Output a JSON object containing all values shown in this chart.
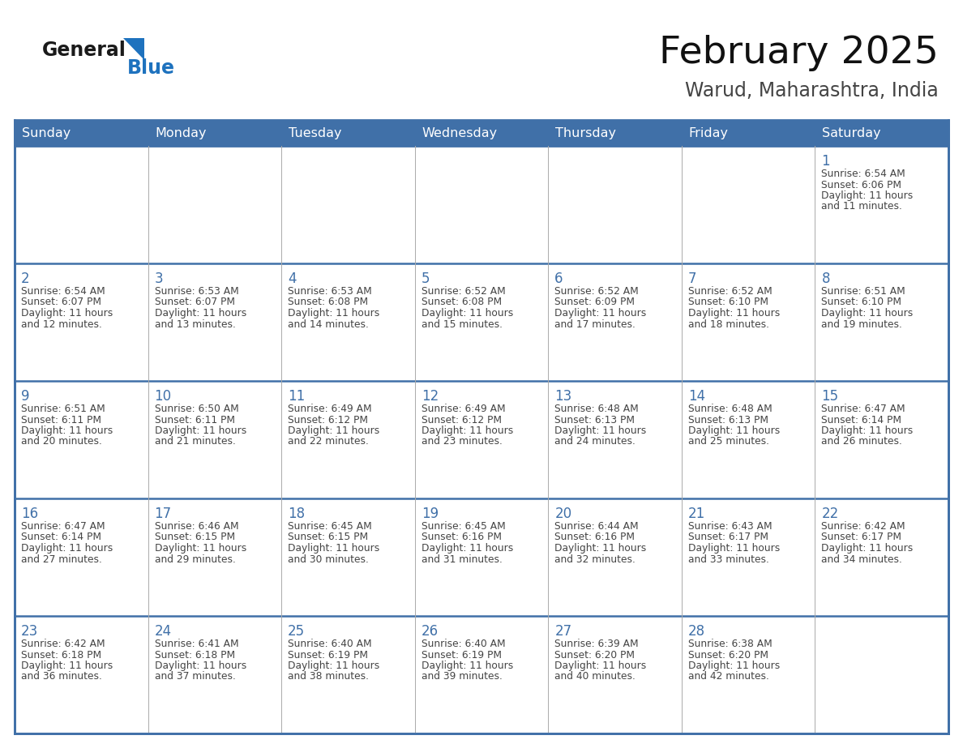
{
  "title": "February 2025",
  "subtitle": "Warud, Maharashtra, India",
  "header_bg_color": "#4070A8",
  "header_text_color": "#FFFFFF",
  "cell_bg_color": "#FFFFFF",
  "row_sep_color": "#4070A8",
  "col_sep_color": "#AAAAAA",
  "text_color": "#444444",
  "day_number_color": "#4070A8",
  "days_of_week": [
    "Sunday",
    "Monday",
    "Tuesday",
    "Wednesday",
    "Thursday",
    "Friday",
    "Saturday"
  ],
  "logo_text1": "General",
  "logo_text2": "Blue",
  "logo_color1": "#1A1A1A",
  "logo_color2": "#1E72BE",
  "logo_triangle_color": "#1E72BE",
  "title_color": "#111111",
  "subtitle_color": "#444444",
  "calendar_data": [
    [
      {
        "day": 0,
        "info": ""
      },
      {
        "day": 0,
        "info": ""
      },
      {
        "day": 0,
        "info": ""
      },
      {
        "day": 0,
        "info": ""
      },
      {
        "day": 0,
        "info": ""
      },
      {
        "day": 0,
        "info": ""
      },
      {
        "day": 1,
        "info": "Sunrise: 6:54 AM\nSunset: 6:06 PM\nDaylight: 11 hours\nand 11 minutes."
      }
    ],
    [
      {
        "day": 2,
        "info": "Sunrise: 6:54 AM\nSunset: 6:07 PM\nDaylight: 11 hours\nand 12 minutes."
      },
      {
        "day": 3,
        "info": "Sunrise: 6:53 AM\nSunset: 6:07 PM\nDaylight: 11 hours\nand 13 minutes."
      },
      {
        "day": 4,
        "info": "Sunrise: 6:53 AM\nSunset: 6:08 PM\nDaylight: 11 hours\nand 14 minutes."
      },
      {
        "day": 5,
        "info": "Sunrise: 6:52 AM\nSunset: 6:08 PM\nDaylight: 11 hours\nand 15 minutes."
      },
      {
        "day": 6,
        "info": "Sunrise: 6:52 AM\nSunset: 6:09 PM\nDaylight: 11 hours\nand 17 minutes."
      },
      {
        "day": 7,
        "info": "Sunrise: 6:52 AM\nSunset: 6:10 PM\nDaylight: 11 hours\nand 18 minutes."
      },
      {
        "day": 8,
        "info": "Sunrise: 6:51 AM\nSunset: 6:10 PM\nDaylight: 11 hours\nand 19 minutes."
      }
    ],
    [
      {
        "day": 9,
        "info": "Sunrise: 6:51 AM\nSunset: 6:11 PM\nDaylight: 11 hours\nand 20 minutes."
      },
      {
        "day": 10,
        "info": "Sunrise: 6:50 AM\nSunset: 6:11 PM\nDaylight: 11 hours\nand 21 minutes."
      },
      {
        "day": 11,
        "info": "Sunrise: 6:49 AM\nSunset: 6:12 PM\nDaylight: 11 hours\nand 22 minutes."
      },
      {
        "day": 12,
        "info": "Sunrise: 6:49 AM\nSunset: 6:12 PM\nDaylight: 11 hours\nand 23 minutes."
      },
      {
        "day": 13,
        "info": "Sunrise: 6:48 AM\nSunset: 6:13 PM\nDaylight: 11 hours\nand 24 minutes."
      },
      {
        "day": 14,
        "info": "Sunrise: 6:48 AM\nSunset: 6:13 PM\nDaylight: 11 hours\nand 25 minutes."
      },
      {
        "day": 15,
        "info": "Sunrise: 6:47 AM\nSunset: 6:14 PM\nDaylight: 11 hours\nand 26 minutes."
      }
    ],
    [
      {
        "day": 16,
        "info": "Sunrise: 6:47 AM\nSunset: 6:14 PM\nDaylight: 11 hours\nand 27 minutes."
      },
      {
        "day": 17,
        "info": "Sunrise: 6:46 AM\nSunset: 6:15 PM\nDaylight: 11 hours\nand 29 minutes."
      },
      {
        "day": 18,
        "info": "Sunrise: 6:45 AM\nSunset: 6:15 PM\nDaylight: 11 hours\nand 30 minutes."
      },
      {
        "day": 19,
        "info": "Sunrise: 6:45 AM\nSunset: 6:16 PM\nDaylight: 11 hours\nand 31 minutes."
      },
      {
        "day": 20,
        "info": "Sunrise: 6:44 AM\nSunset: 6:16 PM\nDaylight: 11 hours\nand 32 minutes."
      },
      {
        "day": 21,
        "info": "Sunrise: 6:43 AM\nSunset: 6:17 PM\nDaylight: 11 hours\nand 33 minutes."
      },
      {
        "day": 22,
        "info": "Sunrise: 6:42 AM\nSunset: 6:17 PM\nDaylight: 11 hours\nand 34 minutes."
      }
    ],
    [
      {
        "day": 23,
        "info": "Sunrise: 6:42 AM\nSunset: 6:18 PM\nDaylight: 11 hours\nand 36 minutes."
      },
      {
        "day": 24,
        "info": "Sunrise: 6:41 AM\nSunset: 6:18 PM\nDaylight: 11 hours\nand 37 minutes."
      },
      {
        "day": 25,
        "info": "Sunrise: 6:40 AM\nSunset: 6:19 PM\nDaylight: 11 hours\nand 38 minutes."
      },
      {
        "day": 26,
        "info": "Sunrise: 6:40 AM\nSunset: 6:19 PM\nDaylight: 11 hours\nand 39 minutes."
      },
      {
        "day": 27,
        "info": "Sunrise: 6:39 AM\nSunset: 6:20 PM\nDaylight: 11 hours\nand 40 minutes."
      },
      {
        "day": 28,
        "info": "Sunrise: 6:38 AM\nSunset: 6:20 PM\nDaylight: 11 hours\nand 42 minutes."
      },
      {
        "day": 0,
        "info": ""
      }
    ]
  ]
}
